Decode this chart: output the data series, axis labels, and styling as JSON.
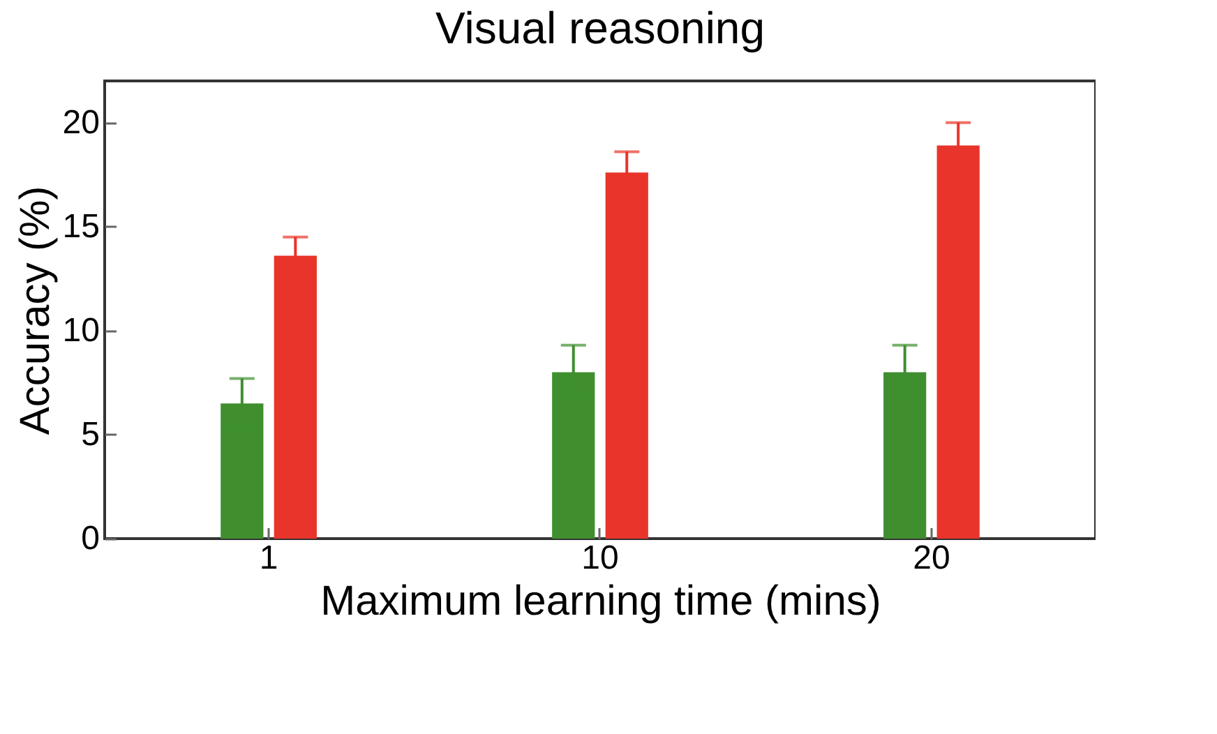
{
  "chart_data": {
    "type": "bar",
    "title": "Visual reasoning",
    "xlabel": "Maximum learning time (mins)",
    "ylabel": "Accuracy (%)",
    "categories": [
      "1",
      "10",
      "20"
    ],
    "series": [
      {
        "color": "#3f8f2f",
        "values": [
          6.5,
          8.0,
          8.0
        ],
        "errors": [
          1.2,
          1.3,
          1.3
        ]
      },
      {
        "color": "#e8342a",
        "values": [
          13.6,
          17.6,
          18.9
        ],
        "errors": [
          0.9,
          1.0,
          1.1
        ]
      }
    ],
    "ylim": [
      0,
      22
    ],
    "yticks": [
      0,
      5,
      10,
      15,
      20
    ],
    "grid": false,
    "legend": false
  }
}
